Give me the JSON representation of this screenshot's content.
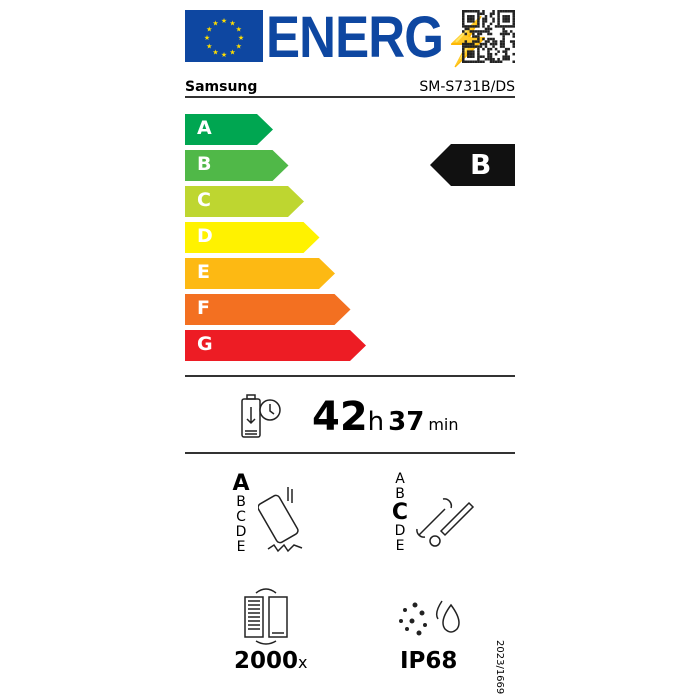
{
  "header": {
    "logo_text": "ENERG",
    "brand": "Samsung",
    "model": "SM-S731B/DS"
  },
  "scale": {
    "classes": [
      "A",
      "B",
      "C",
      "D",
      "E",
      "F",
      "G"
    ],
    "colors": [
      "#00a651",
      "#50b848",
      "#bed630",
      "#fff200",
      "#fdb913",
      "#f37021",
      "#ed1c24"
    ],
    "rating": "B"
  },
  "battery": {
    "hours": "42",
    "h_unit": "h",
    "minutes": "37",
    "min_unit": "min",
    "icon": "battery-clock-icon"
  },
  "drop": {
    "classes": [
      "A",
      "B",
      "C",
      "D",
      "E"
    ],
    "selected": "A",
    "icon": "phone-drop-icon"
  },
  "repair": {
    "classes": [
      "A",
      "B",
      "C",
      "D",
      "E"
    ],
    "selected": "C",
    "icon": "tools-icon"
  },
  "cycles": {
    "value": "2000",
    "unit": "x",
    "icon": "battery-cycle-icon"
  },
  "ingress": {
    "value": "IP68",
    "icon": "dust-water-icon"
  },
  "regulation": "2023/1669"
}
